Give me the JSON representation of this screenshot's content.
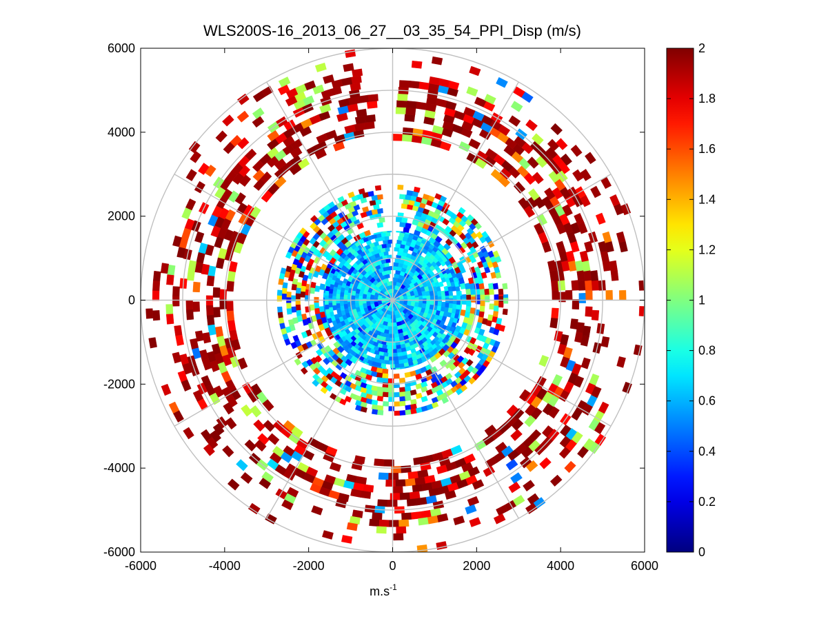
{
  "chart_data": {
    "type": "heatmap",
    "subtype": "polar-ppi",
    "title": "WLS200S-16_2013_06_27__03_35_54_PPI_Disp (m/s)",
    "xlabel": "m.s",
    "xlabel_exponent": "-1",
    "ylabel": "",
    "xlim": [
      -6000,
      6000
    ],
    "ylim": [
      -6000,
      6000
    ],
    "x_ticks": [
      -6000,
      -4000,
      -2000,
      0,
      2000,
      4000,
      6000
    ],
    "y_ticks": [
      -6000,
      -4000,
      -2000,
      0,
      2000,
      4000,
      6000
    ],
    "x_tick_labels": [
      "-6000",
      "-4000",
      "-2000",
      "0",
      "2000",
      "4000",
      "6000"
    ],
    "y_tick_labels": [
      "-6000",
      "-4000",
      "-2000",
      "0",
      "2000",
      "4000",
      "6000"
    ],
    "polar_grid": {
      "ring_radii": [
        1000,
        2000,
        3000,
        4000,
        5000,
        6000
      ],
      "spoke_angles_deg": [
        0,
        30,
        60,
        90,
        120,
        150,
        180,
        210,
        240,
        270,
        300,
        330
      ]
    },
    "colorbar": {
      "colormap": "jet",
      "range": [
        0,
        2
      ],
      "ticks": [
        0,
        0.2,
        0.4,
        0.6,
        0.8,
        1,
        1.2,
        1.4,
        1.6,
        1.8,
        2
      ],
      "tick_labels": [
        "0",
        "0.2",
        "0.4",
        "0.6",
        "0.8",
        "1",
        "1.2",
        "1.4",
        "1.6",
        "1.8",
        "2"
      ]
    },
    "rings": [
      {
        "r_min": 0,
        "r_max": 1650,
        "dominant_value_range": [
          0.45,
          0.85
        ],
        "description": "inner"
      },
      {
        "r_min": 1650,
        "r_max": 2700,
        "dominant_value_range": [
          0.5,
          2.0
        ],
        "gap_angle_deg": [
          85,
          95
        ]
      },
      {
        "r_min": 3800,
        "r_max": 6000,
        "dominant_value_range": [
          1.0,
          2.0
        ]
      }
    ],
    "empty_sectors": [
      {
        "start_deg": 0,
        "end_deg": 360,
        "r_min": 2700,
        "r_max": 3800
      }
    ]
  }
}
